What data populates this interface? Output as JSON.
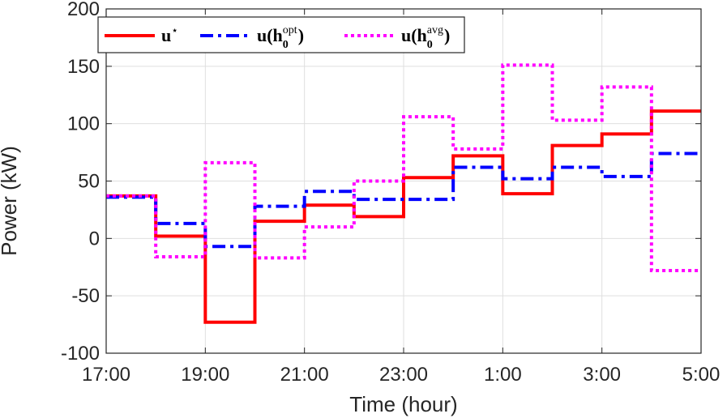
{
  "chart_data": {
    "type": "line",
    "step": true,
    "xlabel": "Time (hour)",
    "ylabel": "Power (kW)",
    "x_tick_labels": [
      "17:00",
      "19:00",
      "21:00",
      "23:00",
      "1:00",
      "3:00",
      "5:00"
    ],
    "x_tick_hours_since_17": [
      0,
      2,
      4,
      6,
      8,
      10,
      12
    ],
    "xlim": [
      0,
      12
    ],
    "ylim": [
      -100,
      200
    ],
    "y_ticks": [
      -100,
      -50,
      0,
      50,
      100,
      150,
      200
    ],
    "grid": true,
    "legend_position": "top-left",
    "series": [
      {
        "name": "u*",
        "legend_main": "u",
        "legend_sup": "⋆",
        "legend_sub": "",
        "legend_close": "",
        "color": "#ff0000",
        "style": "solid",
        "values": [
          37,
          2,
          -73,
          15,
          29,
          19,
          53,
          72,
          39,
          81,
          91,
          111
        ]
      },
      {
        "name": "u(h0opt)",
        "legend_main": "u(h",
        "legend_sup": "opt",
        "legend_sub": "0",
        "legend_close": ")",
        "color": "#0000ff",
        "style": "dashdot",
        "values": [
          36,
          13,
          -7,
          28,
          41,
          34,
          34,
          62,
          52,
          62,
          54,
          74
        ]
      },
      {
        "name": "u(h0avg)",
        "legend_main": "u(h",
        "legend_sup": "avg",
        "legend_sub": "0",
        "legend_close": ")",
        "color": "#ff00ff",
        "style": "dotted",
        "values": [
          37,
          -16,
          66,
          -17,
          10,
          50,
          106,
          78,
          151,
          103,
          132,
          -28
        ]
      }
    ]
  }
}
